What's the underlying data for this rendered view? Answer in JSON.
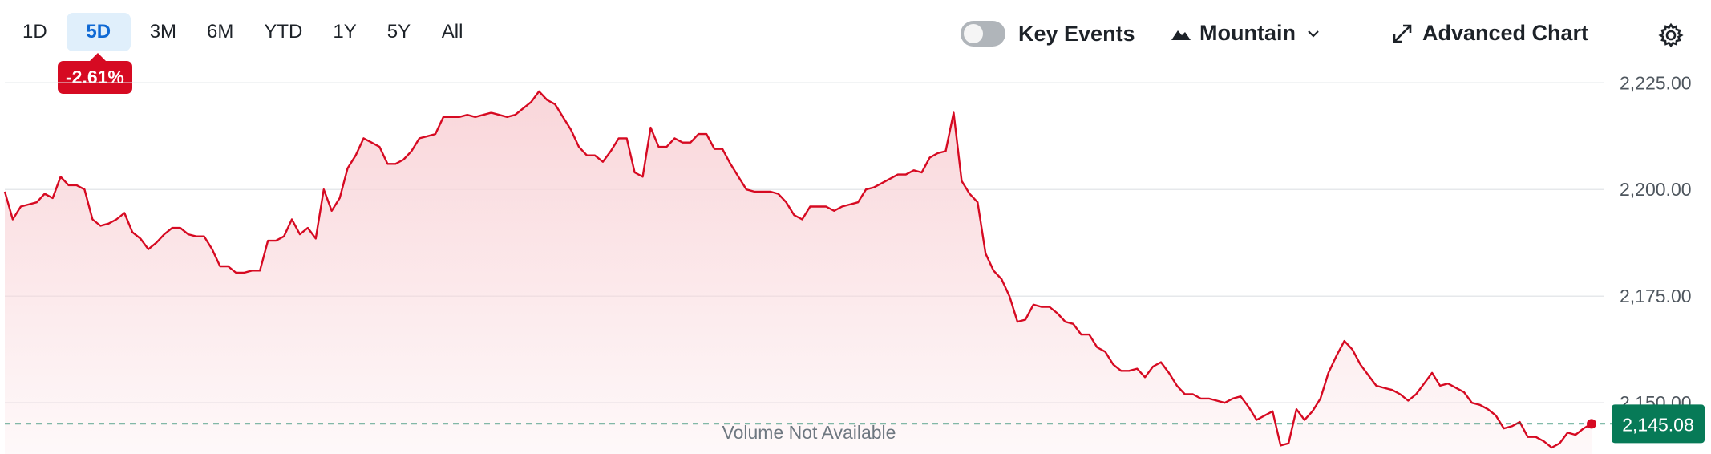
{
  "toolbar": {
    "ranges": [
      "1D",
      "5D",
      "3M",
      "6M",
      "YTD",
      "1Y",
      "5Y",
      "All"
    ],
    "active_range": "5D",
    "change_badge": "-2.61%",
    "key_events_label": "Key Events",
    "key_events_on": false,
    "chart_style_label": "Mountain",
    "advanced_chart_label": "Advanced Chart",
    "icons": [
      "toggle-switch",
      "mountain-icon",
      "chevron-down-icon",
      "expand-arrows-icon",
      "gear-icon"
    ]
  },
  "colors": {
    "line": "#d60a22",
    "fill": "#f9d6da",
    "current_price_tag": "#077a57",
    "active_range_bg": "#e0effb",
    "active_range_text": "#0f69d4",
    "badge": "#d60a22"
  },
  "volume_note": "Volume Not Available",
  "current_price_label": "2,145.08",
  "chart_data": {
    "type": "area",
    "title": "",
    "xlabel": "",
    "ylabel": "",
    "ylim": [
      2138,
      2229
    ],
    "yticks": [
      2150,
      2175,
      2200,
      2225
    ],
    "ytick_labels": [
      "2,150.00",
      "2,175.00",
      "2,200.00",
      "2,225.00"
    ],
    "grid": true,
    "current_value": 2145.08,
    "series": [
      {
        "values": [
          2199.5,
          2193,
          2196,
          2196.5,
          2197,
          2199,
          2198,
          2203,
          2201,
          2201,
          2200,
          2193,
          2191.5,
          2192,
          2193,
          2194.5,
          2190,
          2188.5,
          2186,
          2187.5,
          2189.5,
          2191,
          2191,
          2189.5,
          2189,
          2189,
          2186,
          2182,
          2182,
          2180.5,
          2180.5,
          2181,
          2181,
          2188,
          2188,
          2189,
          2193,
          2189.5,
          2191,
          2188.5,
          2200,
          2195,
          2198,
          2205,
          2208,
          2212,
          2211,
          2210,
          2206,
          2206,
          2207,
          2209,
          2212,
          2212.5,
          2213,
          2217,
          2217,
          2217,
          2217.5,
          2217,
          2217.5,
          2218,
          2217.5,
          2217,
          2217.5,
          2219,
          2220.5,
          2223,
          2221,
          2220,
          2217,
          2214,
          2210,
          2208,
          2208,
          2206.5,
          2209,
          2212,
          2212,
          2204,
          2203,
          2214.5,
          2210,
          2210,
          2212,
          2211,
          2211,
          2213,
          2213,
          2209.5,
          2209.5,
          2206,
          2203,
          2200,
          2199.5,
          2199.5,
          2199.5,
          2199,
          2197,
          2194,
          2193,
          2196,
          2196,
          2196,
          2195,
          2196,
          2196.5,
          2197,
          2200,
          2200.5,
          2201.5,
          2202.5,
          2203.5,
          2203.5,
          2204.5,
          2204,
          2207.5,
          2208.5,
          2209,
          2218,
          2202,
          2199,
          2197,
          2185,
          2181,
          2179,
          2175,
          2169,
          2169.5,
          2173,
          2172.5,
          2172.5,
          2171,
          2169,
          2168.5,
          2166,
          2166,
          2163,
          2162,
          2159,
          2157.5,
          2157.5,
          2158,
          2156,
          2158.5,
          2159.5,
          2157,
          2154,
          2152,
          2152,
          2151,
          2151,
          2150.5,
          2150,
          2151,
          2151.5,
          2149,
          2146,
          2147,
          2148,
          2140,
          2140.5,
          2148.5,
          2146,
          2148,
          2151,
          2157,
          2161,
          2164.5,
          2162.5,
          2159,
          2156.5,
          2154,
          2153.5,
          2153,
          2152,
          2150.5,
          2152,
          2154.5,
          2157,
          2154,
          2154.5,
          2153.5,
          2152.5,
          2150,
          2149.5,
          2148.5,
          2147,
          2144,
          2144.5,
          2145.5,
          2142,
          2142,
          2141,
          2139.5,
          2140.5,
          2143,
          2142.5,
          2144,
          2145.08
        ]
      }
    ]
  }
}
